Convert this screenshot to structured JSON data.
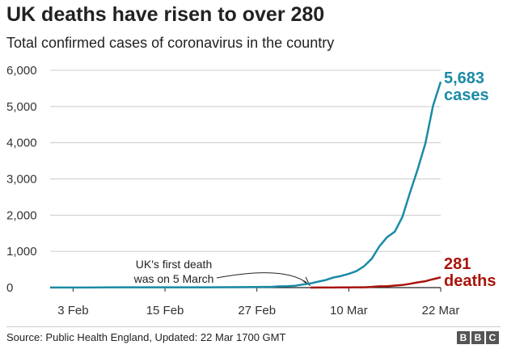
{
  "header": {
    "title": "UK deaths have risen to over 280",
    "subtitle": "Total confirmed cases of coronavirus in the country"
  },
  "footer": {
    "source": "Source: Public Health England, Updated: 22 Mar 1700 GMT",
    "logo_letters": [
      "B",
      "B",
      "C"
    ]
  },
  "colors": {
    "cases": "#1a8ba6",
    "deaths": "#a8140c",
    "grid": "#cccccc",
    "axis": "#222222"
  },
  "chart_data": {
    "type": "line",
    "title": "UK deaths have risen to over 280",
    "subtitle": "Total confirmed cases of coronavirus in the country",
    "xlabel": "",
    "ylabel": "",
    "ylim": [
      0,
      6000
    ],
    "yticks": [
      0,
      1000,
      2000,
      3000,
      4000,
      5000,
      6000
    ],
    "ytick_labels": [
      "0",
      "1,000",
      "2,000",
      "3,000",
      "4,000",
      "5,000",
      "6,000"
    ],
    "x_range": [
      "2020-01-31",
      "2020-03-22"
    ],
    "xticks": [
      {
        "date": "2020-02-03",
        "label": "3 Feb"
      },
      {
        "date": "2020-02-15",
        "label": "15 Feb"
      },
      {
        "date": "2020-02-27",
        "label": "27 Feb"
      },
      {
        "date": "2020-03-10",
        "label": "10 Mar"
      },
      {
        "date": "2020-03-22",
        "label": "22 Mar"
      }
    ],
    "grid": true,
    "series": [
      {
        "name": "cases",
        "end_value_label": "5,683",
        "end_name_label": "cases",
        "color": "#1a8ba6",
        "points": [
          [
            "2020-01-31",
            2
          ],
          [
            "2020-02-05",
            3
          ],
          [
            "2020-02-10",
            8
          ],
          [
            "2020-02-15",
            9
          ],
          [
            "2020-02-20",
            9
          ],
          [
            "2020-02-25",
            13
          ],
          [
            "2020-02-27",
            15
          ],
          [
            "2020-02-29",
            23
          ],
          [
            "2020-03-01",
            36
          ],
          [
            "2020-03-02",
            40
          ],
          [
            "2020-03-03",
            51
          ],
          [
            "2020-03-04",
            87
          ],
          [
            "2020-03-05",
            116
          ],
          [
            "2020-03-06",
            164
          ],
          [
            "2020-03-07",
            209
          ],
          [
            "2020-03-08",
            278
          ],
          [
            "2020-03-09",
            321
          ],
          [
            "2020-03-10",
            382
          ],
          [
            "2020-03-11",
            456
          ],
          [
            "2020-03-12",
            590
          ],
          [
            "2020-03-13",
            798
          ],
          [
            "2020-03-14",
            1140
          ],
          [
            "2020-03-15",
            1391
          ],
          [
            "2020-03-16",
            1543
          ],
          [
            "2020-03-17",
            1950
          ],
          [
            "2020-03-18",
            2626
          ],
          [
            "2020-03-19",
            3269
          ],
          [
            "2020-03-20",
            3983
          ],
          [
            "2020-03-21",
            5018
          ],
          [
            "2020-03-22",
            5683
          ]
        ]
      },
      {
        "name": "deaths",
        "end_value_label": "281",
        "end_name_label": "deaths",
        "color": "#a8140c",
        "points": [
          [
            "2020-03-05",
            1
          ],
          [
            "2020-03-06",
            2
          ],
          [
            "2020-03-07",
            2
          ],
          [
            "2020-03-08",
            3
          ],
          [
            "2020-03-09",
            4
          ],
          [
            "2020-03-10",
            6
          ],
          [
            "2020-03-11",
            8
          ],
          [
            "2020-03-12",
            10
          ],
          [
            "2020-03-13",
            21
          ],
          [
            "2020-03-14",
            35
          ],
          [
            "2020-03-15",
            35
          ],
          [
            "2020-03-16",
            55
          ],
          [
            "2020-03-17",
            71
          ],
          [
            "2020-03-18",
            104
          ],
          [
            "2020-03-19",
            144
          ],
          [
            "2020-03-20",
            177
          ],
          [
            "2020-03-21",
            233
          ],
          [
            "2020-03-22",
            281
          ]
        ]
      }
    ],
    "annotations": [
      {
        "text_lines": [
          "UK's first death",
          "was on 5 March"
        ],
        "points_to_date": "2020-03-05"
      }
    ]
  }
}
